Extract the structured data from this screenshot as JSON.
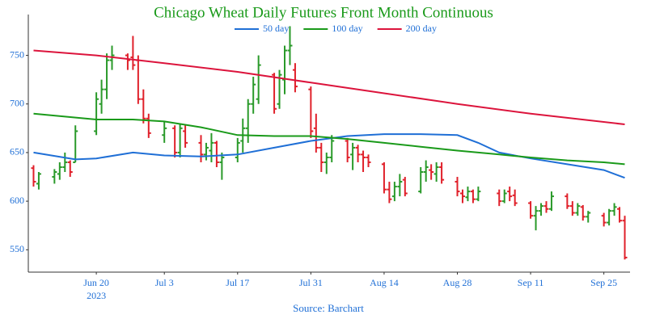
{
  "chart_data": {
    "type": "ohlc",
    "title": "Chicago Wheat Daily Futures Front Month Continuous",
    "source": "Source: Barchart",
    "x_year_label": "2023",
    "xlim": [
      "2023-06-07",
      "2023-09-30"
    ],
    "xticks": [
      {
        "value": "2023-06-20",
        "label": "Jun 20"
      },
      {
        "value": "2023-07-03",
        "label": "Jul 3"
      },
      {
        "value": "2023-07-17",
        "label": "Jul 17"
      },
      {
        "value": "2023-07-31",
        "label": "Jul 31"
      },
      {
        "value": "2023-08-14",
        "label": "Aug 14"
      },
      {
        "value": "2023-08-28",
        "label": "Aug 28"
      },
      {
        "value": "2023-09-11",
        "label": "Sep 11"
      },
      {
        "value": "2023-09-25",
        "label": "Sep 25"
      }
    ],
    "ylim": [
      527,
      792
    ],
    "yticks": [
      550,
      600,
      650,
      700,
      750
    ],
    "grid": false,
    "legend": "top",
    "ohlc": {
      "up_color": "#2a9a2a",
      "down_color": "#e0202a",
      "x": [
        "2023-06-08",
        "2023-06-09",
        "2023-06-12",
        "2023-06-13",
        "2023-06-14",
        "2023-06-15",
        "2023-06-16",
        "2023-06-20",
        "2023-06-21",
        "2023-06-22",
        "2023-06-23",
        "2023-06-26",
        "2023-06-27",
        "2023-06-28",
        "2023-06-29",
        "2023-06-30",
        "2023-07-03",
        "2023-07-05",
        "2023-07-06",
        "2023-07-07",
        "2023-07-10",
        "2023-07-11",
        "2023-07-12",
        "2023-07-13",
        "2023-07-14",
        "2023-07-17",
        "2023-07-18",
        "2023-07-19",
        "2023-07-20",
        "2023-07-21",
        "2023-07-24",
        "2023-07-25",
        "2023-07-26",
        "2023-07-27",
        "2023-07-28",
        "2023-07-31",
        "2023-08-01",
        "2023-08-02",
        "2023-08-03",
        "2023-08-04",
        "2023-08-07",
        "2023-08-08",
        "2023-08-09",
        "2023-08-10",
        "2023-08-11",
        "2023-08-14",
        "2023-08-15",
        "2023-08-16",
        "2023-08-17",
        "2023-08-18",
        "2023-08-21",
        "2023-08-22",
        "2023-08-23",
        "2023-08-24",
        "2023-08-25",
        "2023-08-28",
        "2023-08-29",
        "2023-08-30",
        "2023-08-31",
        "2023-09-01",
        "2023-09-05",
        "2023-09-06",
        "2023-09-07",
        "2023-09-08",
        "2023-09-11",
        "2023-09-12",
        "2023-09-13",
        "2023-09-14",
        "2023-09-15",
        "2023-09-18",
        "2023-09-19",
        "2023-09-20",
        "2023-09-21",
        "2023-09-22",
        "2023-09-25",
        "2023-09-26",
        "2023-09-27",
        "2023-09-28",
        "2023-09-29"
      ],
      "open": [
        634,
        618,
        625,
        628,
        635,
        640,
        640,
        672,
        700,
        715,
        745,
        750,
        748,
        745,
        705,
        685,
        668,
        675,
        650,
        672,
        660,
        648,
        652,
        660,
        640,
        645,
        662,
        675,
        700,
        705,
        730,
        700,
        725,
        755,
        735,
        715,
        675,
        655,
        640,
        645,
        662,
        648,
        655,
        648,
        645,
        638,
        612,
        605,
        615,
        622,
        610,
        630,
        632,
        628,
        635,
        620,
        608,
        604,
        610,
        602,
        608,
        600,
        610,
        606,
        598,
        585,
        590,
        595,
        592,
        605,
        595,
        588,
        594,
        584,
        585,
        578,
        590,
        592,
        580
      ],
      "high": [
        637,
        630,
        633,
        640,
        650,
        642,
        678,
        712,
        725,
        752,
        760,
        752,
        770,
        750,
        715,
        690,
        682,
        678,
        680,
        678,
        668,
        660,
        670,
        662,
        650,
        665,
        685,
        705,
        728,
        750,
        732,
        735,
        760,
        780,
        742,
        718,
        690,
        660,
        650,
        668,
        665,
        660,
        658,
        652,
        648,
        640,
        620,
        620,
        628,
        625,
        635,
        642,
        638,
        640,
        640,
        625,
        612,
        615,
        612,
        615,
        612,
        612,
        615,
        612,
        600,
        595,
        598,
        600,
        610,
        608,
        600,
        598,
        596,
        590,
        588,
        592,
        598,
        594,
        585
      ],
      "low": [
        615,
        612,
        618,
        622,
        630,
        625,
        640,
        668,
        690,
        705,
        735,
        735,
        735,
        700,
        680,
        665,
        660,
        645,
        645,
        655,
        640,
        642,
        640,
        635,
        622,
        640,
        650,
        660,
        690,
        700,
        690,
        695,
        710,
        740,
        712,
        665,
        650,
        630,
        628,
        640,
        640,
        632,
        640,
        630,
        635,
        608,
        598,
        600,
        605,
        605,
        608,
        620,
        622,
        620,
        618,
        605,
        598,
        600,
        598,
        600,
        595,
        598,
        600,
        595,
        582,
        570,
        585,
        588,
        590,
        592,
        585,
        585,
        580,
        578,
        574,
        575,
        585,
        578,
        540
      ],
      "close": [
        620,
        628,
        630,
        635,
        640,
        630,
        672,
        705,
        715,
        745,
        750,
        745,
        740,
        705,
        685,
        670,
        675,
        650,
        675,
        660,
        648,
        655,
        660,
        640,
        645,
        660,
        675,
        700,
        720,
        740,
        695,
        730,
        755,
        760,
        718,
        672,
        655,
        640,
        645,
        662,
        645,
        655,
        648,
        645,
        640,
        612,
        602,
        615,
        620,
        608,
        630,
        635,
        630,
        635,
        622,
        610,
        605,
        610,
        602,
        610,
        600,
        608,
        605,
        598,
        585,
        590,
        595,
        592,
        605,
        595,
        588,
        595,
        584,
        588,
        578,
        590,
        594,
        580,
        542
      ]
    },
    "lines": [
      {
        "name": "50 day",
        "color": "#1f6fd6",
        "x": [
          "2023-06-08",
          "2023-06-16",
          "2023-06-20",
          "2023-06-27",
          "2023-07-03",
          "2023-07-10",
          "2023-07-17",
          "2023-07-24",
          "2023-07-31",
          "2023-08-07",
          "2023-08-14",
          "2023-08-21",
          "2023-08-28",
          "2023-09-01",
          "2023-09-05",
          "2023-09-11",
          "2023-09-18",
          "2023-09-25",
          "2023-09-29"
        ],
        "values": [
          650,
          643,
          644,
          650,
          647,
          646,
          648,
          655,
          662,
          667,
          669,
          669,
          668,
          660,
          650,
          644,
          638,
          632,
          624
        ]
      },
      {
        "name": "100 day",
        "color": "#1a9a1a",
        "x": [
          "2023-06-08",
          "2023-06-20",
          "2023-06-27",
          "2023-07-03",
          "2023-07-10",
          "2023-07-17",
          "2023-07-24",
          "2023-07-31",
          "2023-08-07",
          "2023-08-14",
          "2023-08-21",
          "2023-08-28",
          "2023-09-05",
          "2023-09-11",
          "2023-09-18",
          "2023-09-25",
          "2023-09-29"
        ],
        "values": [
          690,
          684,
          684,
          682,
          676,
          668,
          667,
          667,
          664,
          660,
          656,
          652,
          648,
          645,
          642,
          640,
          638
        ]
      },
      {
        "name": "200 day",
        "color": "#dc143c",
        "x": [
          "2023-06-08",
          "2023-06-20",
          "2023-07-03",
          "2023-07-17",
          "2023-07-31",
          "2023-08-14",
          "2023-08-28",
          "2023-09-11",
          "2023-09-29"
        ],
        "values": [
          755,
          750,
          742,
          733,
          722,
          711,
          700,
          690,
          679
        ]
      }
    ]
  }
}
